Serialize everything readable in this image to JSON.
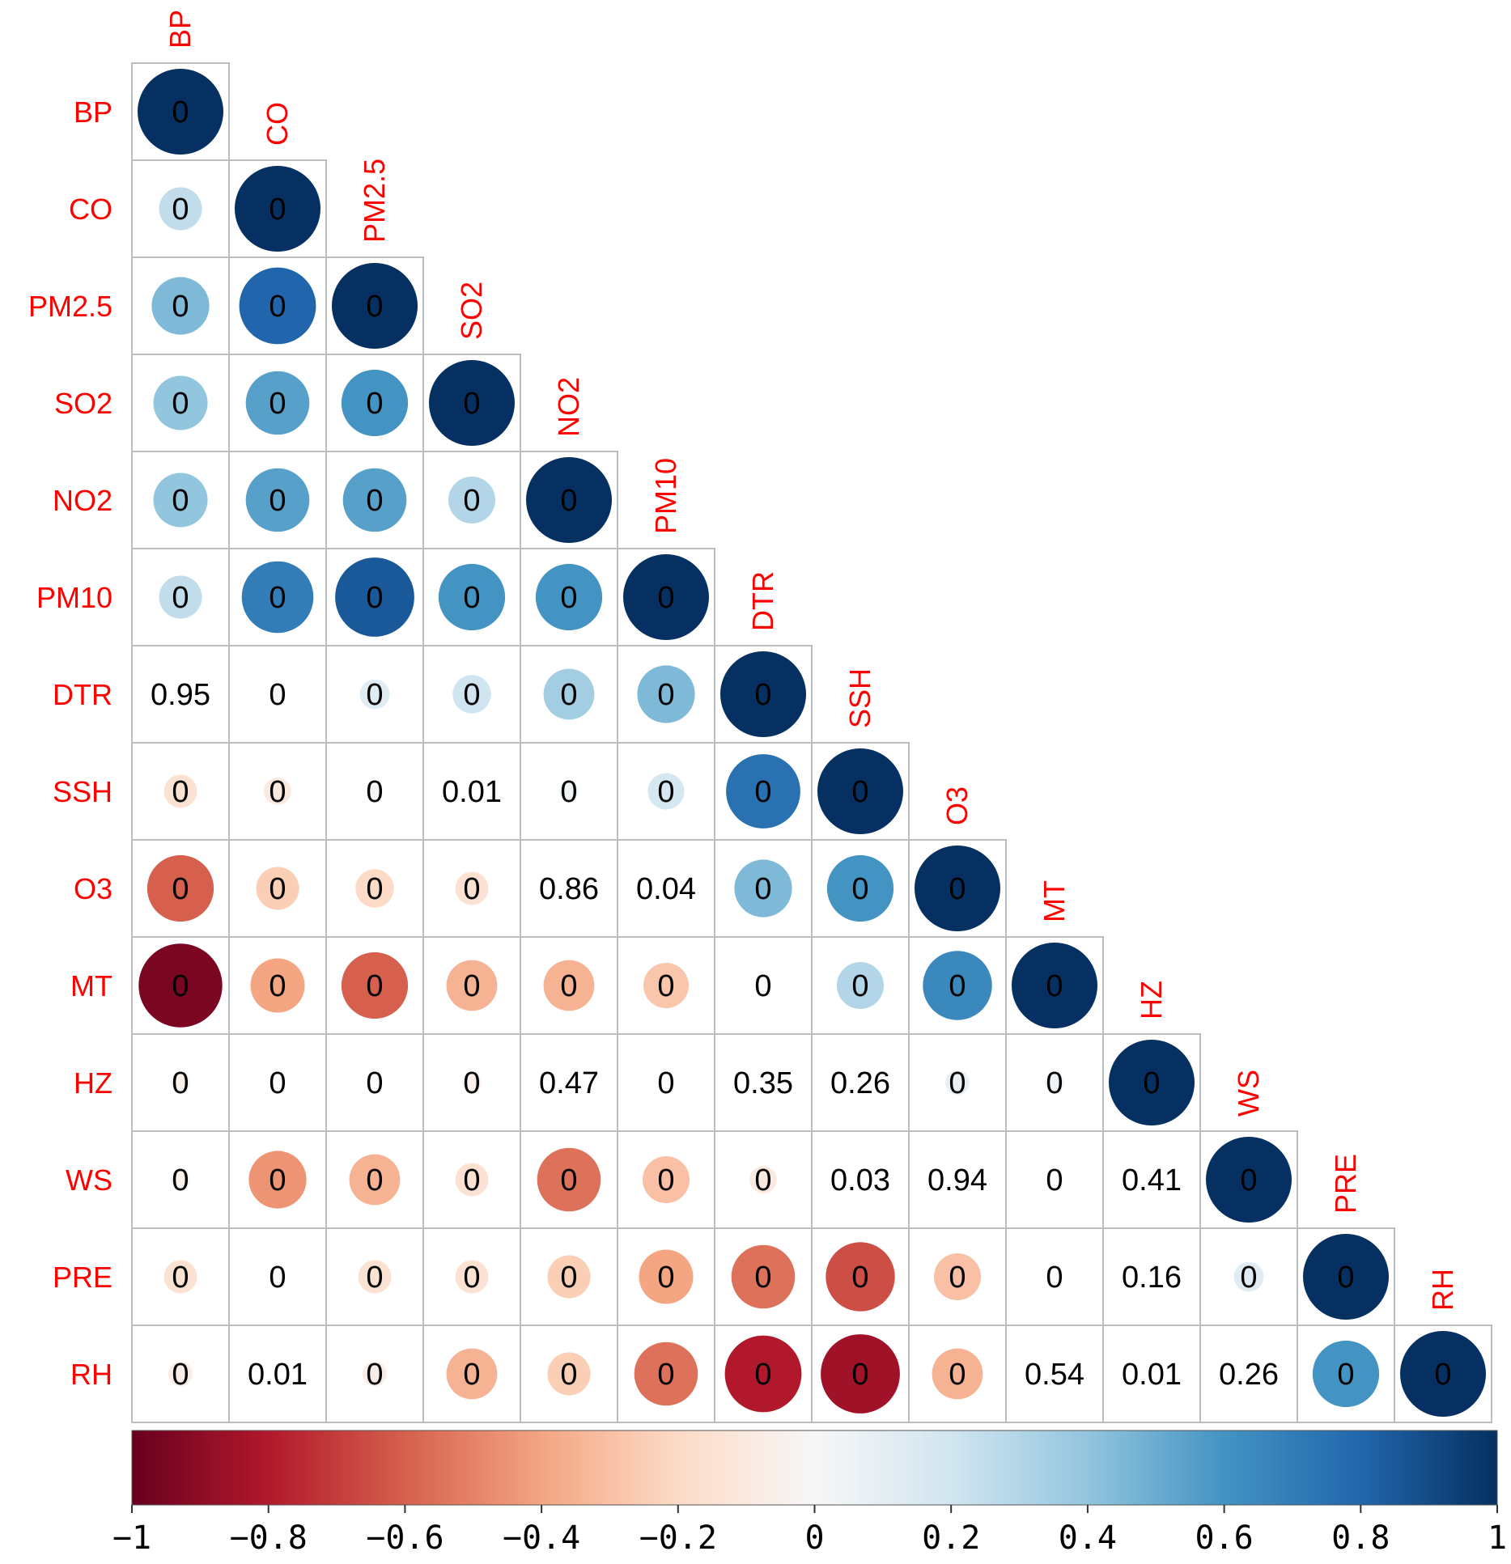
{
  "chart_data": {
    "type": "heatmap",
    "subtype": "correlation-circle-lower-triangle",
    "variables": [
      "BP",
      "CO",
      "PM2.5",
      "SO2",
      "NO2",
      "PM10",
      "DTR",
      "SSH",
      "O3",
      "MT",
      "HZ",
      "WS",
      "PRE",
      "RH"
    ],
    "correlations": [
      [
        1
      ],
      [
        0.25,
        1
      ],
      [
        0.45,
        0.8,
        1
      ],
      [
        0.4,
        0.55,
        0.6,
        1
      ],
      [
        0.4,
        0.55,
        0.55,
        0.3,
        1
      ],
      [
        0.25,
        0.7,
        0.85,
        0.6,
        0.6,
        1
      ],
      [
        0.0,
        0.02,
        0.12,
        0.2,
        0.35,
        0.45,
        1
      ],
      [
        -0.15,
        -0.1,
        -0.02,
        0.0,
        0.05,
        0.18,
        0.75,
        1
      ],
      [
        -0.6,
        -0.25,
        -0.2,
        -0.15,
        0.0,
        0.0,
        0.45,
        0.6,
        1
      ],
      [
        -0.95,
        -0.4,
        -0.6,
        -0.35,
        -0.35,
        -0.28,
        0.0,
        0.3,
        0.65,
        1
      ],
      [
        -0.05,
        0.0,
        0.0,
        -0.05,
        0.0,
        0.0,
        0.0,
        0.0,
        0.08,
        0.05,
        1
      ],
      [
        -0.05,
        -0.45,
        -0.35,
        -0.15,
        -0.55,
        -0.3,
        -0.1,
        0.0,
        0.0,
        0.0,
        0.0,
        1
      ],
      [
        -0.15,
        0.0,
        -0.15,
        -0.15,
        -0.25,
        -0.4,
        -0.55,
        -0.65,
        -0.3,
        0.0,
        0.0,
        0.12,
        1
      ],
      [
        -0.08,
        0.0,
        -0.08,
        -0.35,
        -0.25,
        -0.55,
        -0.8,
        -0.85,
        -0.35,
        0.0,
        0.0,
        0.0,
        0.6,
        1
      ]
    ],
    "cell_labels": [
      [
        "0"
      ],
      [
        "0",
        "0"
      ],
      [
        "0",
        "0",
        "0"
      ],
      [
        "0",
        "0",
        "0",
        "0"
      ],
      [
        "0",
        "0",
        "0",
        "0",
        "0"
      ],
      [
        "0",
        "0",
        "0",
        "0",
        "0",
        "0"
      ],
      [
        "0.95",
        "0",
        "0",
        "0",
        "0",
        "0",
        "0"
      ],
      [
        "0",
        "0",
        "0",
        "0.01",
        "0",
        "0",
        "0",
        "0"
      ],
      [
        "0",
        "0",
        "0",
        "0",
        "0.86",
        "0.04",
        "0",
        "0",
        "0"
      ],
      [
        "0",
        "0",
        "0",
        "0",
        "0",
        "0",
        "0",
        "0",
        "0",
        "0"
      ],
      [
        "0",
        "0",
        "0",
        "0",
        "0.47",
        "0",
        "0.35",
        "0.26",
        "0",
        "0",
        "0"
      ],
      [
        "0",
        "0",
        "0",
        "0",
        "0",
        "0",
        "0",
        "0.03",
        "0.94",
        "0",
        "0.41",
        "0"
      ],
      [
        "0",
        "0",
        "0",
        "0",
        "0",
        "0",
        "0",
        "0",
        "0",
        "0",
        "0.16",
        "0",
        "0"
      ],
      [
        "0",
        "0.01",
        "0",
        "0",
        "0",
        "0",
        "0",
        "0",
        "0",
        "0.54",
        "0.01",
        "0.26",
        "0",
        "0"
      ]
    ],
    "colorbar": {
      "range": [
        -1,
        1
      ],
      "ticks": [
        "−1",
        "−0.8",
        "−0.6",
        "−0.4",
        "−0.2",
        "0",
        "0.2",
        "0.4",
        "0.6",
        "0.8",
        "1"
      ],
      "tick_values": [
        -1,
        -0.8,
        -0.6,
        -0.4,
        -0.2,
        0,
        0.2,
        0.4,
        0.6,
        0.8,
        1
      ],
      "colors": [
        "#67001f",
        "#b2182b",
        "#d6604d",
        "#f4a582",
        "#fddbc7",
        "#f7f7f7",
        "#d1e5f0",
        "#92c5de",
        "#4393c3",
        "#2166ac",
        "#053061"
      ]
    },
    "label_color": "#ff0000",
    "grid_color": "#bdbdbd"
  }
}
